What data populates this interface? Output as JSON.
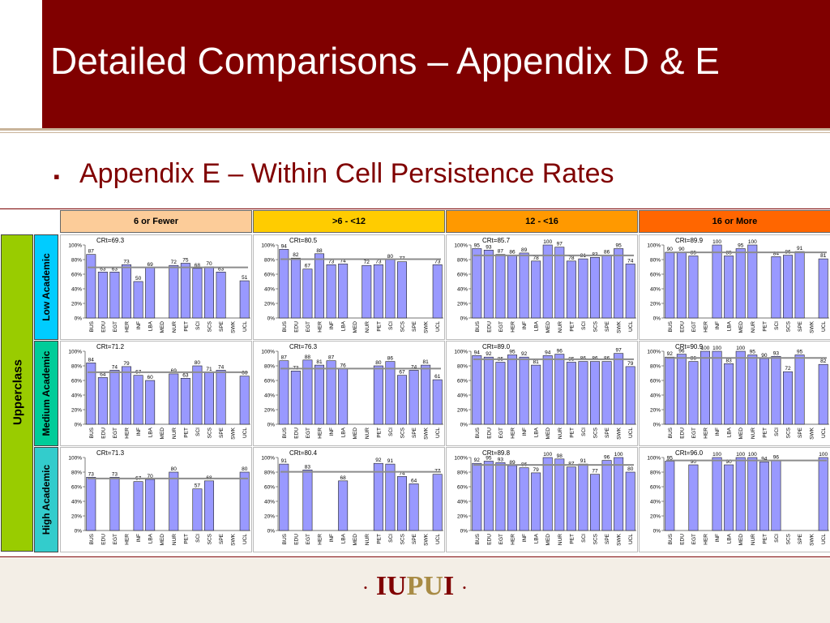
{
  "slide": {
    "title": "Detailed Comparisons – Appendix D & E",
    "bullet": "▪",
    "subtitle": "Appendix E – Within Cell Persistence Rates",
    "footer": {
      "dot_left": "·",
      "iu": "IU",
      "pu": "PU",
      "i": "I",
      "dot_right": "·"
    },
    "colors": {
      "title_band": "#800000",
      "bar_fill": "#9999ff",
      "crt_line": "#8c8c8c",
      "upperclass": "#99cc00",
      "low_academic": "#00ccff",
      "medium_academic": "#00cc99",
      "high_academic": "#33cccc"
    }
  },
  "table": {
    "columns": [
      {
        "label": "6 or Fewer",
        "color": "#fccc99"
      },
      {
        "label": ">6 - <12",
        "color": "#ffcc00"
      },
      {
        "label": "12 - <16",
        "color": "#ff9900"
      },
      {
        "label": "16 or More",
        "color": "#ff6600"
      }
    ],
    "group_label": "Upperclass",
    "rows": [
      {
        "label": "Low Academic",
        "color": "#00ccff"
      },
      {
        "label": "Medium Academic",
        "color": "#00cc99"
      },
      {
        "label": "High Academic",
        "color": "#33cccc"
      }
    ]
  },
  "chart_data": {
    "type": "bar",
    "categories": [
      "BUS",
      "EDU",
      "EGT",
      "HER",
      "INF",
      "LBA",
      "MED",
      "NUR",
      "PET",
      "SCI",
      "SCS",
      "SPE",
      "SWK",
      "UCL"
    ],
    "y_ticks": [
      "0%",
      "20%",
      "40%",
      "60%",
      "80%",
      "100%"
    ],
    "ylim": [
      0,
      100
    ],
    "panels": [
      {
        "row": 0,
        "col": 0,
        "crt_label": "CRt=69.3",
        "crt": 69.3,
        "values": [
          87,
          63,
          63,
          73,
          50,
          69,
          null,
          72,
          75,
          68,
          70,
          63,
          null,
          51
        ]
      },
      {
        "row": 0,
        "col": 1,
        "crt_label": "CRt=80.5",
        "crt": 80.5,
        "values": [
          94,
          82,
          67,
          88,
          73,
          74,
          null,
          72,
          73,
          80,
          77,
          null,
          null,
          73
        ]
      },
      {
        "row": 0,
        "col": 2,
        "crt_label": "CRt=85.7",
        "crt": 85.7,
        "values": [
          95,
          93,
          87,
          86,
          89,
          78,
          100,
          97,
          78,
          81,
          83,
          86,
          95,
          74
        ]
      },
      {
        "row": 0,
        "col": 3,
        "crt_label": "CRt=89.9",
        "crt": 89.9,
        "values": [
          90,
          90,
          85,
          null,
          100,
          85,
          95,
          100,
          null,
          84,
          86,
          91,
          null,
          81
        ]
      },
      {
        "row": 1,
        "col": 0,
        "crt_label": "CRt=71.2",
        "crt": 71.2,
        "values": [
          84,
          64,
          74,
          79,
          67,
          60,
          null,
          69,
          63,
          80,
          71,
          74,
          null,
          66
        ]
      },
      {
        "row": 1,
        "col": 1,
        "crt_label": "CRt=76.3",
        "crt": 76.3,
        "values": [
          87,
          73,
          88,
          81,
          87,
          76,
          null,
          null,
          80,
          86,
          67,
          74,
          81,
          61
        ]
      },
      {
        "row": 1,
        "col": 2,
        "crt_label": "CRt=89.0",
        "crt": 89.0,
        "values": [
          94,
          92,
          85,
          95,
          92,
          81,
          94,
          96,
          85,
          86,
          86,
          86,
          97,
          79
        ]
      },
      {
        "row": 1,
        "col": 3,
        "crt_label": "CRt=90.9",
        "crt": 90.9,
        "values": [
          92,
          96,
          86,
          100,
          100,
          83,
          100,
          95,
          90,
          93,
          72,
          95,
          null,
          82
        ]
      },
      {
        "row": 2,
        "col": 0,
        "crt_label": "CRt=71.3",
        "crt": 71.3,
        "values": [
          73,
          null,
          73,
          null,
          67,
          70,
          null,
          80,
          null,
          57,
          68,
          null,
          null,
          80
        ]
      },
      {
        "row": 2,
        "col": 1,
        "crt_label": "CRt=80.4",
        "crt": 80.4,
        "values": [
          91,
          null,
          83,
          null,
          null,
          68,
          null,
          null,
          92,
          91,
          74,
          64,
          null,
          77
        ]
      },
      {
        "row": 2,
        "col": 2,
        "crt_label": "CRt=89.8",
        "crt": 89.8,
        "values": [
          92,
          95,
          93,
          89,
          86,
          79,
          100,
          98,
          87,
          91,
          77,
          96,
          100,
          80
        ]
      },
      {
        "row": 2,
        "col": 3,
        "crt_label": "CRt=96.0",
        "crt": 96.0,
        "values": [
          95,
          null,
          90,
          null,
          100,
          90,
          100,
          100,
          94,
          96,
          null,
          null,
          null,
          100
        ]
      }
    ]
  }
}
